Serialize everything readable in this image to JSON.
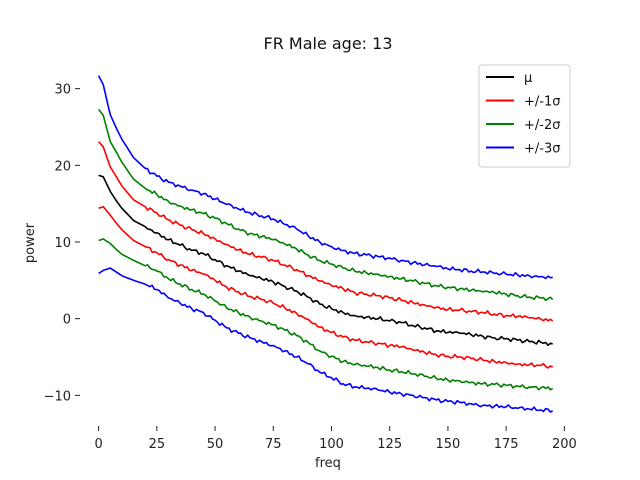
{
  "chart_data": {
    "type": "line",
    "title": "FR Male age: 13",
    "xlabel": "freq",
    "ylabel": "power",
    "xlim": [
      -8,
      205
    ],
    "ylim": [
      -14,
      34
    ],
    "xticks": [
      0,
      25,
      50,
      75,
      100,
      125,
      150,
      175,
      200
    ],
    "yticks": [
      -10,
      0,
      10,
      20,
      30
    ],
    "grid": false,
    "legend_position": "top-right",
    "x": [
      0,
      2,
      5,
      8,
      10,
      15,
      20,
      25,
      30,
      35,
      40,
      45,
      50,
      55,
      60,
      65,
      70,
      75,
      80,
      85,
      90,
      95,
      100,
      105,
      110,
      115,
      120,
      125,
      130,
      135,
      140,
      145,
      150,
      155,
      160,
      165,
      170,
      175,
      180,
      185,
      190,
      195
    ],
    "series": [
      {
        "name": "μ",
        "color": "#000000",
        "values": [
          18.7,
          18.5,
          16.6,
          15.2,
          14.4,
          12.8,
          12.0,
          11.2,
          10.3,
          9.6,
          8.9,
          8.5,
          7.7,
          6.9,
          6.2,
          5.6,
          5.2,
          4.8,
          4.2,
          3.6,
          2.8,
          1.9,
          1.3,
          0.8,
          0.4,
          0.2,
          0.0,
          -0.3,
          -0.5,
          -0.9,
          -1.2,
          -1.6,
          -1.8,
          -1.9,
          -2.1,
          -2.3,
          -2.5,
          -2.6,
          -2.8,
          -3.0,
          -3.1,
          -3.3
        ]
      },
      {
        "name": "+/-1σ",
        "color": "#ff0000",
        "values": [
          14.4,
          14.6,
          13.5,
          12.3,
          11.6,
          10.2,
          9.4,
          8.6,
          7.7,
          7.0,
          6.3,
          5.8,
          5.0,
          4.1,
          3.5,
          2.9,
          2.5,
          2.0,
          1.4,
          0.7,
          -0.1,
          -1.1,
          -1.8,
          -2.4,
          -2.8,
          -3.0,
          -3.2,
          -3.5,
          -3.7,
          -4.1,
          -4.4,
          -4.7,
          -4.9,
          -5.0,
          -5.2,
          -5.4,
          -5.6,
          -5.7,
          -5.9,
          -6.0,
          -6.1,
          -6.3
        ]
      },
      {
        "name": "+/-2σ",
        "color": "#008000",
        "values": [
          10.2,
          10.4,
          9.8,
          8.9,
          8.4,
          7.6,
          6.9,
          6.2,
          5.2,
          4.5,
          3.8,
          3.2,
          2.3,
          1.4,
          0.8,
          0.2,
          -0.3,
          -0.8,
          -1.5,
          -2.2,
          -3.1,
          -4.2,
          -4.9,
          -5.6,
          -6.0,
          -6.2,
          -6.4,
          -6.7,
          -6.9,
          -7.2,
          -7.5,
          -7.8,
          -8.0,
          -8.1,
          -8.3,
          -8.5,
          -8.6,
          -8.7,
          -8.8,
          -8.9,
          -9.0,
          -9.1
        ]
      },
      {
        "name": "+/-3σ",
        "color": "#0000ff",
        "values": [
          5.9,
          6.3,
          6.6,
          6.0,
          5.6,
          5.0,
          4.5,
          3.8,
          2.7,
          2.0,
          1.3,
          0.8,
          -0.2,
          -1.2,
          -1.9,
          -2.5,
          -3.0,
          -3.5,
          -4.2,
          -5.0,
          -5.9,
          -7.0,
          -7.7,
          -8.5,
          -8.9,
          -9.1,
          -9.3,
          -9.6,
          -9.8,
          -10.0,
          -10.3,
          -10.6,
          -10.8,
          -10.9,
          -11.1,
          -11.3,
          -11.4,
          -11.5,
          -11.7,
          -11.8,
          -11.9,
          -12.0
        ]
      },
      {
        "name": "+/-1σ",
        "color": "#ff0000",
        "legend": false,
        "values": [
          23.1,
          22.4,
          19.8,
          18.3,
          17.3,
          15.5,
          14.6,
          13.8,
          12.9,
          12.2,
          11.6,
          11.1,
          10.4,
          9.7,
          9.0,
          8.4,
          8.0,
          7.6,
          7.0,
          6.4,
          5.6,
          4.9,
          4.3,
          3.9,
          3.4,
          3.2,
          3.0,
          2.7,
          2.4,
          2.1,
          1.8,
          1.5,
          1.2,
          1.1,
          0.9,
          0.8,
          0.6,
          0.4,
          0.3,
          0.1,
          -0.1,
          -0.3
        ]
      },
      {
        "name": "+/-2σ",
        "color": "#008000",
        "legend": false,
        "values": [
          27.3,
          26.5,
          23.1,
          21.5,
          20.4,
          18.2,
          17.0,
          16.2,
          15.3,
          14.7,
          14.2,
          13.7,
          13.1,
          12.4,
          11.7,
          11.1,
          10.7,
          10.3,
          9.7,
          9.1,
          8.3,
          7.6,
          7.1,
          6.6,
          6.2,
          6.0,
          5.8,
          5.5,
          5.2,
          4.9,
          4.6,
          4.3,
          4.1,
          3.9,
          3.7,
          3.5,
          3.4,
          3.2,
          3.0,
          2.8,
          2.7,
          2.5
        ]
      },
      {
        "name": "+/-3σ",
        "color": "#0000ff",
        "legend": false,
        "values": [
          31.7,
          30.5,
          26.6,
          24.6,
          23.4,
          21.0,
          19.6,
          18.6,
          17.8,
          17.3,
          16.8,
          16.3,
          15.6,
          14.9,
          14.3,
          13.8,
          13.4,
          13.0,
          12.3,
          11.7,
          10.8,
          10.0,
          9.4,
          8.9,
          8.5,
          8.3,
          8.1,
          7.9,
          7.6,
          7.3,
          7.0,
          6.8,
          6.5,
          6.4,
          6.2,
          6.1,
          5.9,
          5.8,
          5.7,
          5.6,
          5.5,
          5.4
        ]
      }
    ]
  }
}
